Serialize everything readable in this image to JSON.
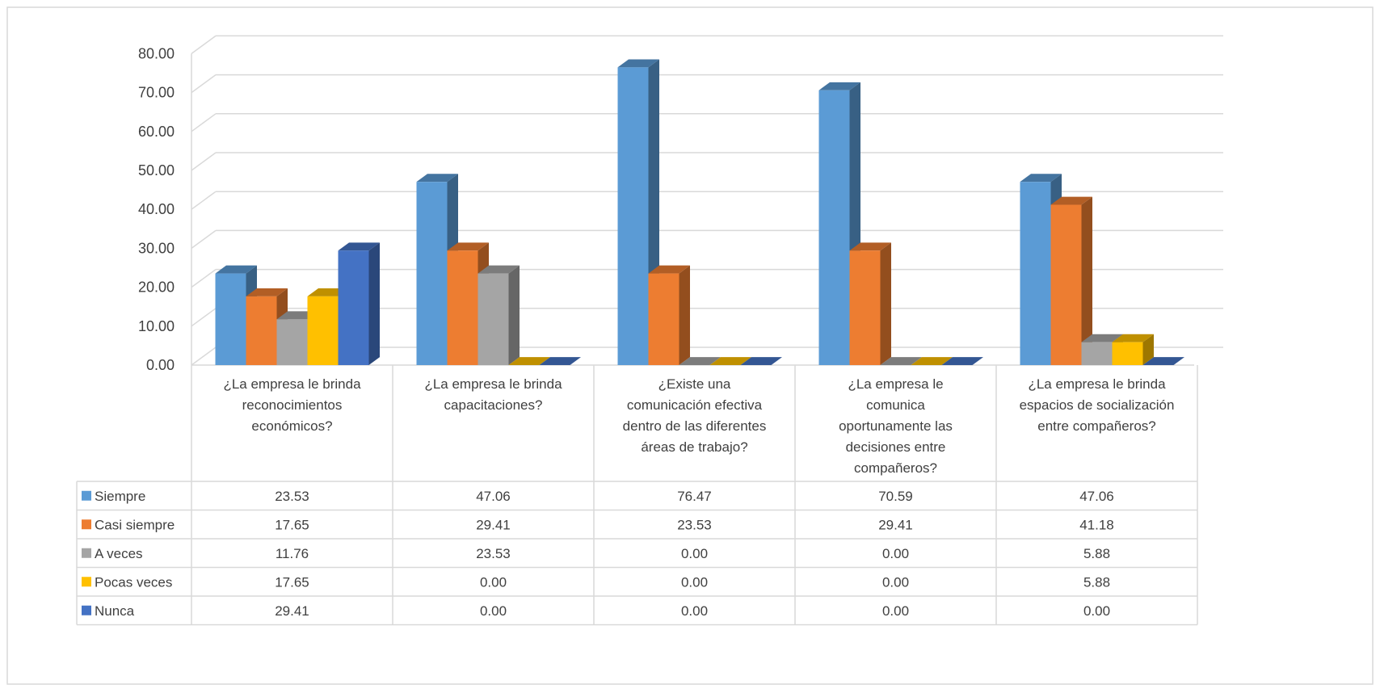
{
  "chart_data": {
    "type": "bar",
    "title": "",
    "xlabel": "",
    "ylabel": "",
    "ylim": [
      0,
      80
    ],
    "yticks": [
      "0.00",
      "10.00",
      "20.00",
      "30.00",
      "40.00",
      "50.00",
      "60.00",
      "70.00",
      "80.00"
    ],
    "grid": true,
    "legend": "data-table-left",
    "categories": [
      "¿La empresa le brinda reconocimientos económicos?",
      "¿La empresa le brinda capacitaciones?",
      "¿Existe una comunicación efectiva dentro de las diferentes áreas de trabajo?",
      "¿La empresa le comunica oportunamente las decisiones entre compañeros?",
      "¿La empresa le brinda espacios de socialización entre compañeros?"
    ],
    "category_lines": [
      [
        "¿La empresa le brinda",
        "reconocimientos",
        "económicos?"
      ],
      [
        "¿La empresa le brinda",
        "capacitaciones?"
      ],
      [
        "¿Existe una",
        "comunicación efectiva",
        "dentro de las diferentes",
        "áreas de trabajo?"
      ],
      [
        "¿La empresa le",
        "comunica",
        "oportunamente las",
        "decisiones entre",
        "compañeros?"
      ],
      [
        "¿La empresa le brinda",
        "espacios de socialización",
        "entre compañeros?"
      ]
    ],
    "series": [
      {
        "name": "Siempre",
        "color": "#5b9bd5",
        "values": [
          23.53,
          47.06,
          76.47,
          70.59,
          47.06
        ],
        "labels": [
          "23.53",
          "47.06",
          "76.47",
          "70.59",
          "47.06"
        ]
      },
      {
        "name": "Casi siempre",
        "color": "#ed7d31",
        "values": [
          17.65,
          29.41,
          23.53,
          29.41,
          41.18
        ],
        "labels": [
          "17.65",
          "29.41",
          "23.53",
          "29.41",
          "41.18"
        ]
      },
      {
        "name": "A veces",
        "color": "#a5a5a5",
        "values": [
          11.76,
          23.53,
          0.0,
          0.0,
          5.88
        ],
        "labels": [
          "11.76",
          "23.53",
          "0.00",
          "0.00",
          "5.88"
        ]
      },
      {
        "name": "Pocas veces",
        "color": "#ffc000",
        "values": [
          17.65,
          0.0,
          0.0,
          0.0,
          5.88
        ],
        "labels": [
          "17.65",
          "0.00",
          "0.00",
          "0.00",
          "5.88"
        ]
      },
      {
        "name": "Nunca",
        "color": "#4472c4",
        "values": [
          29.41,
          0.0,
          0.0,
          0.0,
          0.0
        ],
        "labels": [
          "29.41",
          "0.00",
          "0.00",
          "0.00",
          "0.00"
        ]
      }
    ]
  }
}
